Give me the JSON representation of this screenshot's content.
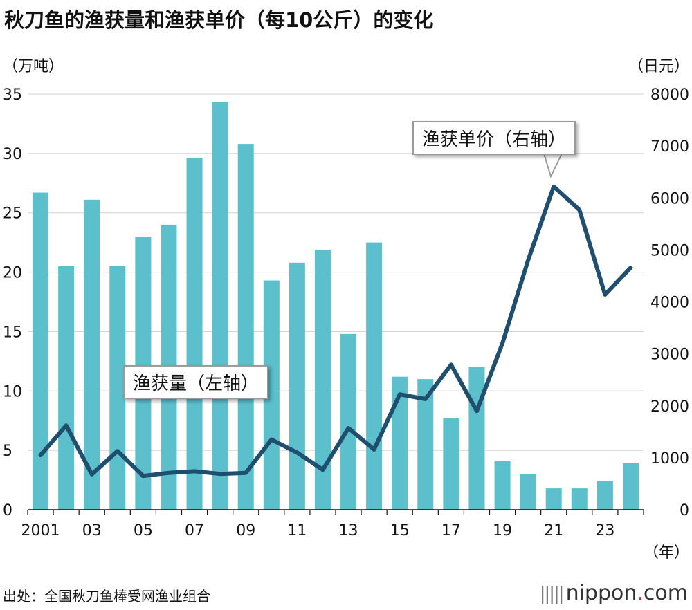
{
  "header": {
    "title": "秋刀鱼的渔获量和渔获单价（每10公斤）的变化",
    "unit_left": "（万吨）",
    "unit_right": "（日元）"
  },
  "footer": {
    "source": "出处：全国秋刀鱼棒受网渔业组合",
    "logo_dots": "|||||",
    "logo_main": "nippon",
    "logo_dot": ".",
    "logo_tail": "com"
  },
  "callouts": {
    "price": "渔获单价（右轴）",
    "catch": "渔获量（左轴）"
  },
  "colors": {
    "bar": "#5bbfcc",
    "line": "#1f4e6e",
    "axis": "#111111",
    "grid": "#cfcfcf"
  },
  "chart_data": {
    "type": "bar+line",
    "x": [
      2001,
      2002,
      2003,
      2004,
      2005,
      2006,
      2007,
      2008,
      2009,
      2010,
      2011,
      2012,
      2013,
      2014,
      2015,
      2016,
      2017,
      2018,
      2019,
      2020,
      2021,
      2022,
      2023,
      2024
    ],
    "x_tick_labels": [
      "2001",
      "",
      "03",
      "",
      "05",
      "",
      "07",
      "",
      "09",
      "",
      "11",
      "",
      "13",
      "",
      "15",
      "",
      "17",
      "",
      "19",
      "",
      "21",
      "",
      "23",
      ""
    ],
    "x_unit_label": "（年）",
    "series": [
      {
        "name": "渔获量（左轴）",
        "type": "bar",
        "axis": "left",
        "values": [
          26.7,
          20.5,
          26.1,
          20.5,
          23.0,
          24.0,
          29.6,
          34.3,
          30.8,
          19.3,
          20.8,
          21.9,
          14.8,
          22.5,
          11.2,
          11.0,
          7.7,
          12.0,
          4.1,
          3.0,
          1.8,
          1.8,
          2.4,
          3.9
        ]
      },
      {
        "name": "渔获单价（右轴）",
        "type": "line",
        "axis": "right",
        "values": [
          1050,
          1620,
          680,
          1130,
          650,
          710,
          740,
          690,
          710,
          1350,
          1100,
          770,
          1570,
          1160,
          2220,
          2130,
          2790,
          1900,
          3200,
          4800,
          6220,
          5770,
          4140,
          4660
        ]
      }
    ],
    "y_left": {
      "lim": [
        0,
        35
      ],
      "ticks": [
        0,
        5,
        10,
        15,
        20,
        25,
        30,
        35
      ]
    },
    "y_right": {
      "lim": [
        0,
        8000
      ],
      "ticks": [
        0,
        1000,
        2000,
        3000,
        4000,
        5000,
        6000,
        7000,
        8000
      ]
    },
    "grid": true,
    "legend": "callouts"
  }
}
